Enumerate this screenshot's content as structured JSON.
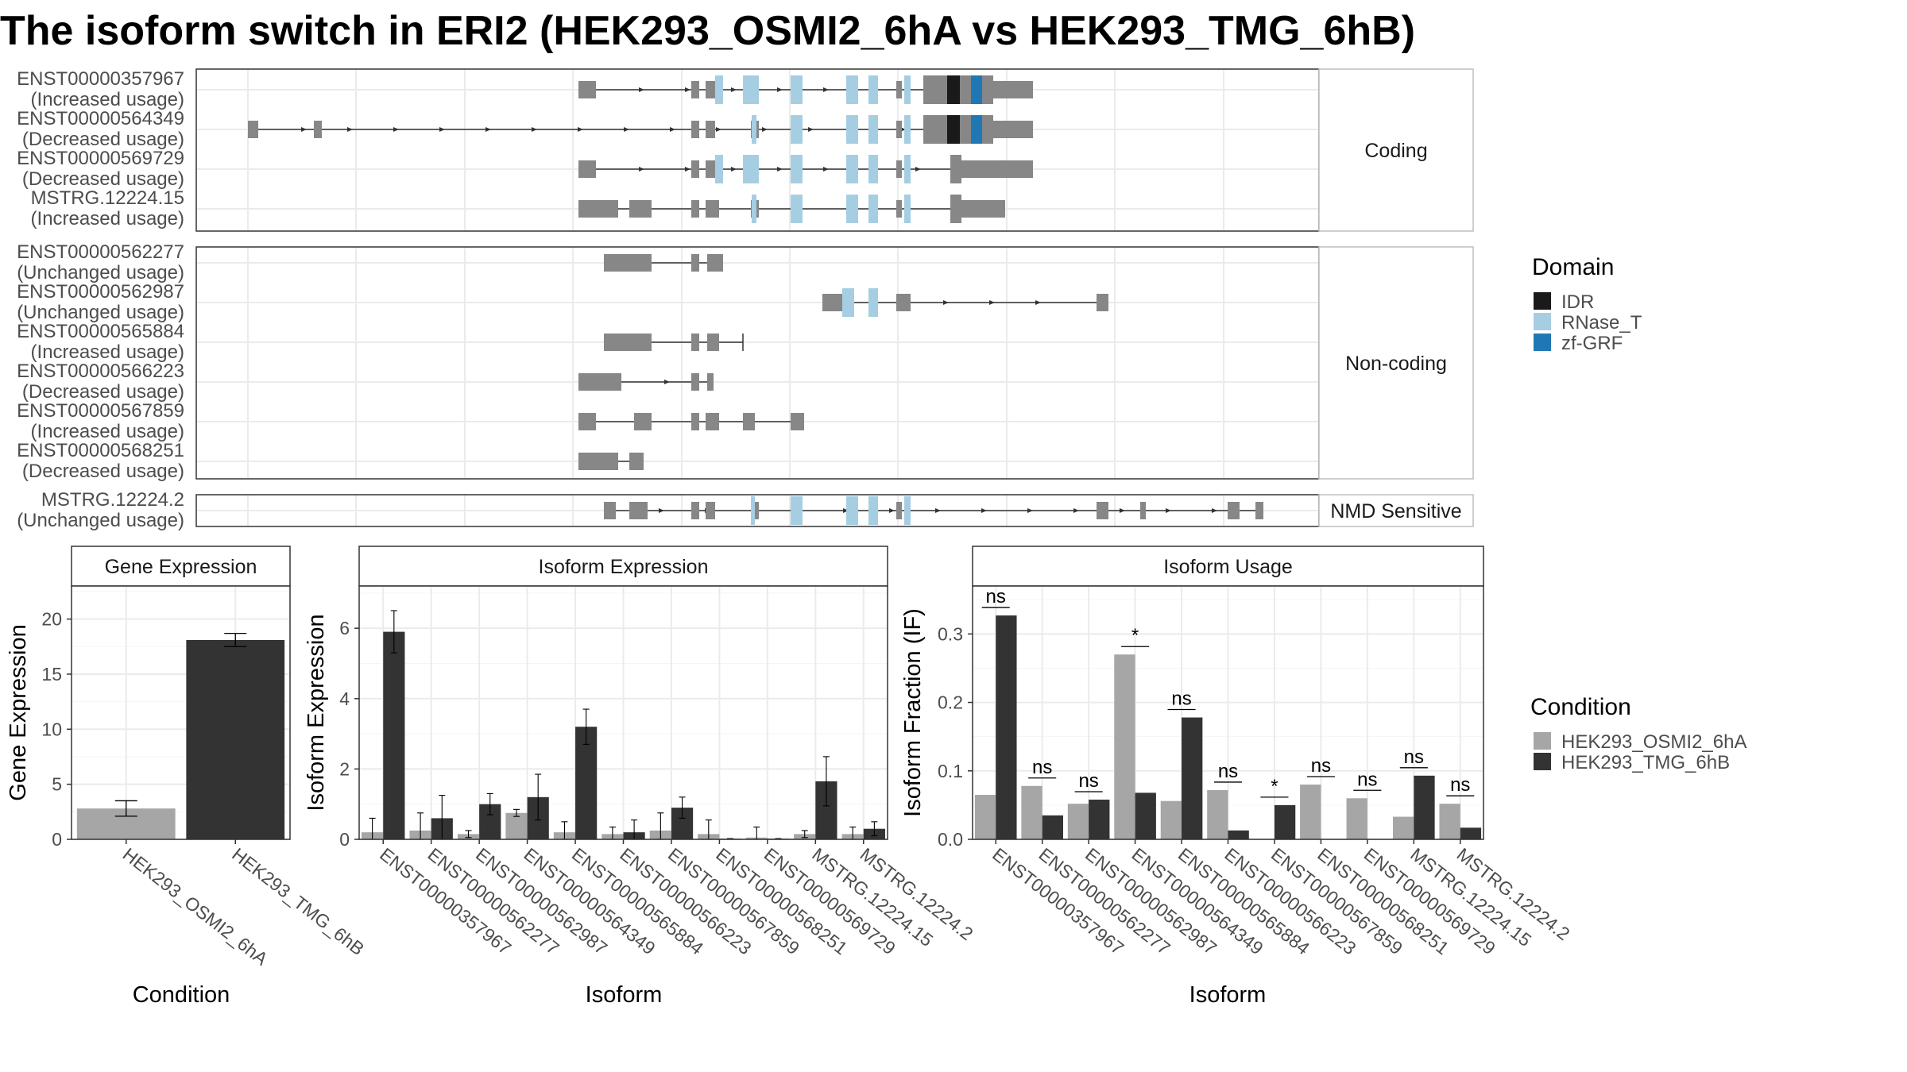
{
  "title": "The isoform switch in ERI2 (HEK293_OSMI2_6hA vs HEK293_TMG_6hB)",
  "structure": {
    "facets": [
      {
        "label": "Coding",
        "transcripts": [
          {
            "id": "ENST00000357967",
            "status": "(Increased usage)",
            "domains": [
              "RNase_T",
              "IDR",
              "zf-GRF"
            ]
          },
          {
            "id": "ENST00000564349",
            "status": "(Decreased usage)",
            "domains": [
              "RNase_T",
              "IDR",
              "zf-GRF"
            ]
          },
          {
            "id": "ENST00000569729",
            "status": "(Decreased usage)",
            "domains": [
              "RNase_T"
            ]
          },
          {
            "id": "MSTRG.12224.15",
            "status": "(Increased usage)",
            "domains": [
              "RNase_T"
            ]
          }
        ]
      },
      {
        "label": "Non-coding",
        "transcripts": [
          {
            "id": "ENST00000562277",
            "status": "(Unchanged usage)",
            "domains": []
          },
          {
            "id": "ENST00000562987",
            "status": "(Unchanged usage)",
            "domains": [
              "RNase_T"
            ]
          },
          {
            "id": "ENST00000565884",
            "status": "(Increased usage)",
            "domains": []
          },
          {
            "id": "ENST00000566223",
            "status": "(Decreased usage)",
            "domains": []
          },
          {
            "id": "ENST00000567859",
            "status": "(Increased usage)",
            "domains": []
          },
          {
            "id": "ENST00000568251",
            "status": "(Decreased usage)",
            "domains": []
          }
        ]
      },
      {
        "label": "NMD Sensitive",
        "transcripts": [
          {
            "id": "MSTRG.12224.2",
            "status": "(Unchanged usage)",
            "domains": [
              "RNase_T"
            ]
          }
        ]
      }
    ],
    "domain_legend": {
      "title": "Domain",
      "items": [
        {
          "name": "IDR",
          "color": "#1a1a1a"
        },
        {
          "name": "RNase_T",
          "color": "#a6cee3"
        },
        {
          "name": "zf-GRF",
          "color": "#1f78b4"
        }
      ]
    }
  },
  "condition_legend": {
    "title": "Condition",
    "items": [
      {
        "name": "HEK293_OSMI2_6hA",
        "color": "#a6a6a6"
      },
      {
        "name": "HEK293_TMG_6hB",
        "color": "#333333"
      }
    ]
  },
  "chart_data": [
    {
      "type": "bar",
      "title": "Gene Expression",
      "xlabel": "Condition",
      "ylabel": "Gene Expression",
      "ylim": [
        0,
        23
      ],
      "yticks": [
        0,
        5,
        10,
        15,
        20
      ],
      "categories": [
        "HEK293_OSMI2_6hA",
        "HEK293_TMG_6hB"
      ],
      "values": [
        2.8,
        18.1
      ],
      "errors": [
        0.7,
        0.6
      ]
    },
    {
      "type": "bar",
      "title": "Isoform Expression",
      "xlabel": "Isoform",
      "ylabel": "Isoform Expression",
      "ylim": [
        0,
        7.2
      ],
      "yticks": [
        0,
        2,
        4,
        6
      ],
      "categories": [
        "ENST00000357967",
        "ENST00000562277",
        "ENST00000562987",
        "ENST00000564349",
        "ENST00000565884",
        "ENST00000566223",
        "ENST00000567859",
        "ENST00000568251",
        "ENST00000569729",
        "MSTRG.12224.15",
        "MSTRG.12224.2"
      ],
      "series": [
        {
          "name": "HEK293_OSMI2_6hA",
          "values": [
            0.2,
            0.25,
            0.15,
            0.75,
            0.2,
            0.15,
            0.25,
            0.15,
            0.05,
            0.15,
            0.15
          ],
          "errors": [
            0.4,
            0.5,
            0.1,
            0.1,
            0.3,
            0.2,
            0.5,
            0.4,
            0.3,
            0.1,
            0.2
          ]
        },
        {
          "name": "HEK293_TMG_6hB",
          "values": [
            5.9,
            0.6,
            1.0,
            1.2,
            3.2,
            0.2,
            0.9,
            0.02,
            0.02,
            1.65,
            0.3
          ],
          "errors": [
            0.6,
            0.65,
            0.3,
            0.65,
            0.5,
            0.35,
            0.3,
            0.0,
            0.0,
            0.7,
            0.2
          ]
        }
      ]
    },
    {
      "type": "bar",
      "title": "Isoform Usage",
      "xlabel": "Isoform",
      "ylabel": "Isoform Fraction (IF)",
      "ylim": [
        0,
        0.37
      ],
      "yticks": [
        0.0,
        0.1,
        0.2,
        0.3
      ],
      "ytick_labels": [
        "0.0",
        "0.1",
        "0.2",
        "0.3"
      ],
      "categories": [
        "ENST00000357967",
        "ENST00000562277",
        "ENST00000562987",
        "ENST00000564349",
        "ENST00000565884",
        "ENST00000566223",
        "ENST00000567859",
        "ENST00000568251",
        "ENST00000569729",
        "MSTRG.12224.15",
        "MSTRG.12224.2"
      ],
      "series": [
        {
          "name": "HEK293_OSMI2_6hA",
          "values": [
            0.065,
            0.078,
            0.052,
            0.27,
            0.056,
            0.072,
            0.0,
            0.08,
            0.06,
            0.033,
            0.052
          ]
        },
        {
          "name": "HEK293_TMG_6hB",
          "values": [
            0.327,
            0.035,
            0.058,
            0.068,
            0.178,
            0.013,
            0.05,
            0.0,
            0.0,
            0.093,
            0.017
          ]
        }
      ],
      "significance": [
        "ns",
        "ns",
        "ns",
        "*",
        "ns",
        "ns",
        "*",
        "ns",
        "ns",
        "ns",
        "ns"
      ]
    }
  ]
}
